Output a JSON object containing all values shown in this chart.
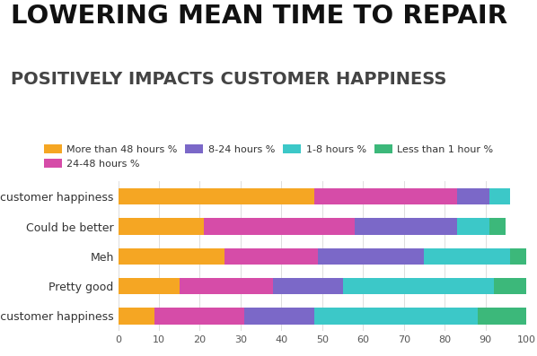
{
  "title_line1": "LOWERING MEAN TIME TO REPAIR",
  "title_line2": "POSITIVELY IMPACTS CUSTOMER HAPPINESS",
  "categories": [
    "Terrible customer happiness",
    "Could be better",
    "Meh",
    "Pretty good",
    "Amazing customer happiness"
  ],
  "series": [
    {
      "label": "More than 48 hours %",
      "color": "#F5A623",
      "values": [
        48,
        21,
        26,
        15,
        9
      ]
    },
    {
      "label": "24-48 hours %",
      "color": "#D64CA8",
      "values": [
        35,
        37,
        23,
        23,
        22
      ]
    },
    {
      "label": "8-24 hours %",
      "color": "#7B68C8",
      "values": [
        8,
        25,
        26,
        17,
        17
      ]
    },
    {
      "label": "1-8 hours %",
      "color": "#3CC8C8",
      "values": [
        5,
        8,
        21,
        37,
        40
      ]
    },
    {
      "label": "Less than 1 hour %",
      "color": "#3CB87A",
      "values": [
        0,
        4,
        4,
        8,
        12
      ]
    }
  ],
  "xlim": [
    0,
    100
  ],
  "xticks": [
    0,
    10,
    20,
    30,
    40,
    50,
    60,
    70,
    80,
    90,
    100
  ],
  "background_color": "#ffffff",
  "title1_fontsize": 21,
  "title2_fontsize": 14,
  "ylabel_fontsize": 9,
  "tick_fontsize": 8,
  "legend_fontsize": 8
}
